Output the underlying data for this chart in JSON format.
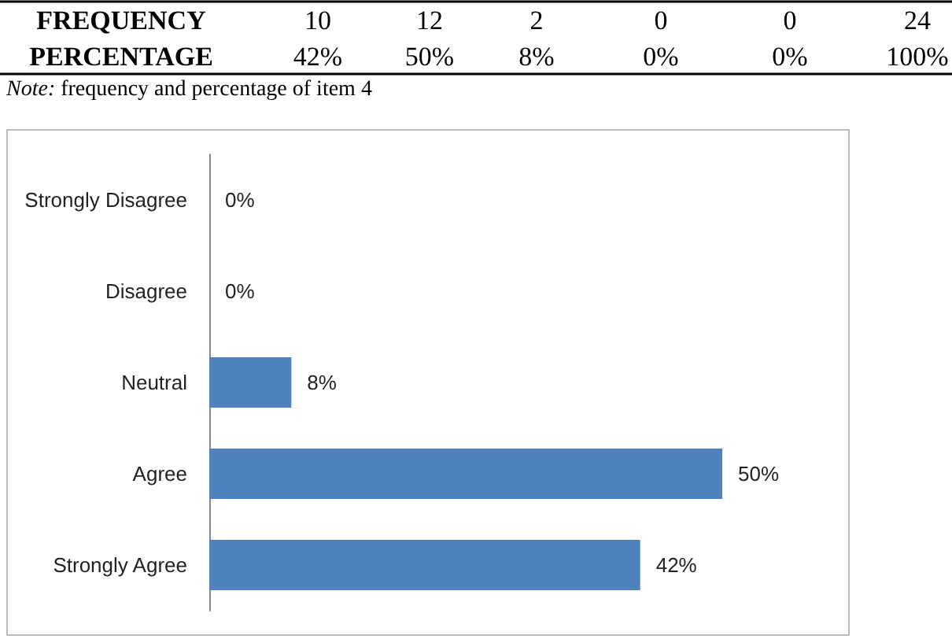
{
  "chart_data": {
    "type": "bar",
    "orientation": "horizontal",
    "categories": [
      "Strongly Disagree",
      "Disagree",
      "Neutral",
      "Agree",
      "Strongly Agree"
    ],
    "values": [
      0,
      0,
      8,
      50,
      42
    ],
    "value_labels": [
      "0%",
      "0%",
      "8%",
      "50%",
      "42%"
    ],
    "color": "#4f81bd",
    "annotations": [
      "FREQUENCY",
      "10",
      "12",
      "2",
      "0",
      "0",
      "24",
      "PERCENTAGE",
      "42%",
      "50%",
      "8%",
      "0%",
      "0%",
      "100%",
      "Note: frequency and percentage of item 4"
    ]
  }
}
